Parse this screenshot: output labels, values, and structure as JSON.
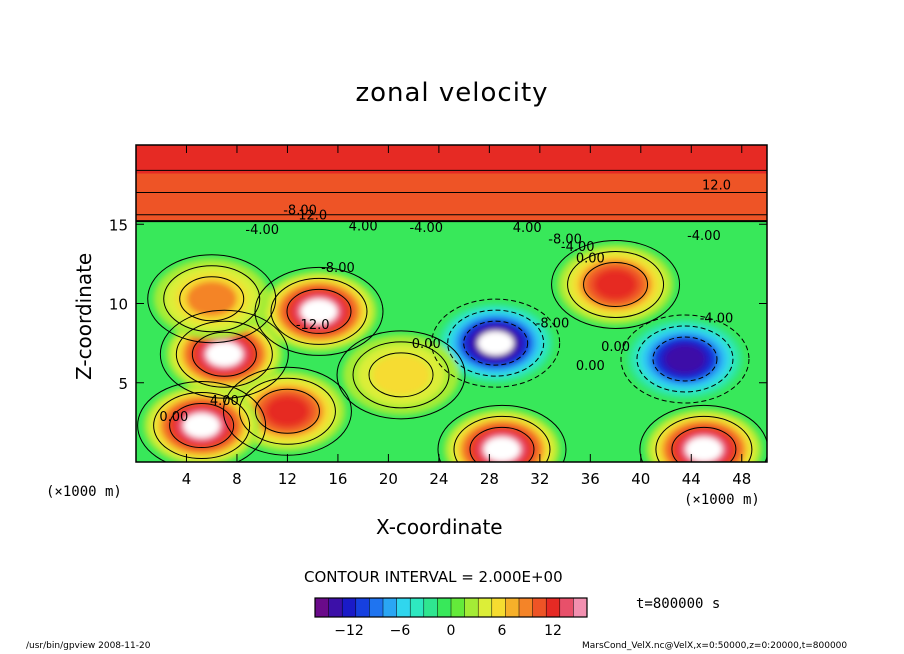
{
  "chart_data": {
    "type": "heatmap",
    "title": "zonal velocity",
    "xlabel": "X-coordinate",
    "ylabel": "Z-coordinate",
    "x_unit_label": "(×1000 m)",
    "xlim": [
      0,
      50
    ],
    "ylim": [
      0,
      20
    ],
    "x_ticks": [
      4,
      8,
      12,
      16,
      20,
      24,
      28,
      32,
      36,
      40,
      44,
      48
    ],
    "y_ticks": [
      5,
      10,
      15
    ],
    "contour_interval_text": "CONTOUR INTERVAL = 2.000E+00",
    "contour_labels": [
      "12.0",
      "-8.00",
      "12.0",
      "-4.00",
      "4.00",
      "-4.00",
      "4.00",
      "-8.00",
      "-4.00",
      "0.00",
      "-4.00",
      "0.00",
      "-8.00",
      "-12.0",
      "0.00",
      "4.00",
      "-8.00",
      "0.00",
      "0.00",
      "-4.00"
    ],
    "colorbar": {
      "min": -16,
      "max": 16,
      "tick_values": [
        -12,
        -6,
        0,
        6,
        12
      ],
      "tick_labels": [
        "−12",
        "−6",
        "0",
        "6",
        "12"
      ],
      "colors": [
        "#6a0a8a",
        "#3c10a8",
        "#1a1ac8",
        "#1640e0",
        "#1f74f0",
        "#2aa6f4",
        "#30d6ee",
        "#2ee8c0",
        "#2fe690",
        "#38e85a",
        "#64ea3a",
        "#a4ec36",
        "#dcee38",
        "#f6dc30",
        "#f6b02a",
        "#f48428",
        "#ee5426",
        "#e62a24",
        "#e8506a",
        "#f290b0"
      ]
    },
    "features": [
      {
        "x": 28.5,
        "z": 7.5,
        "value": -16
      },
      {
        "x": 43.5,
        "z": 6.5,
        "value": -13
      },
      {
        "x": 14.5,
        "z": 9.5,
        "value": 16
      },
      {
        "x": 7.0,
        "z": 6.8,
        "value": 16
      },
      {
        "x": 12.0,
        "z": 3.2,
        "value": 12
      },
      {
        "x": 29.0,
        "z": 0.8,
        "value": 16
      },
      {
        "x": 45.0,
        "z": 0.8,
        "value": 16
      },
      {
        "x": 38.0,
        "z": 11.2,
        "value": 12
      },
      {
        "x": 21.0,
        "z": 5.5,
        "value": 6
      },
      {
        "x": 5.2,
        "z": 2.3,
        "value": 16
      },
      {
        "x": 6.0,
        "z": 10.3,
        "value": 8
      }
    ]
  },
  "time_text": "t=800000 s",
  "footer": {
    "left": "/usr/bin/gpview  2008-11-20",
    "right": "MarsCond_VelX.nc@VelX,x=0:50000,z=0:20000,t=800000"
  }
}
